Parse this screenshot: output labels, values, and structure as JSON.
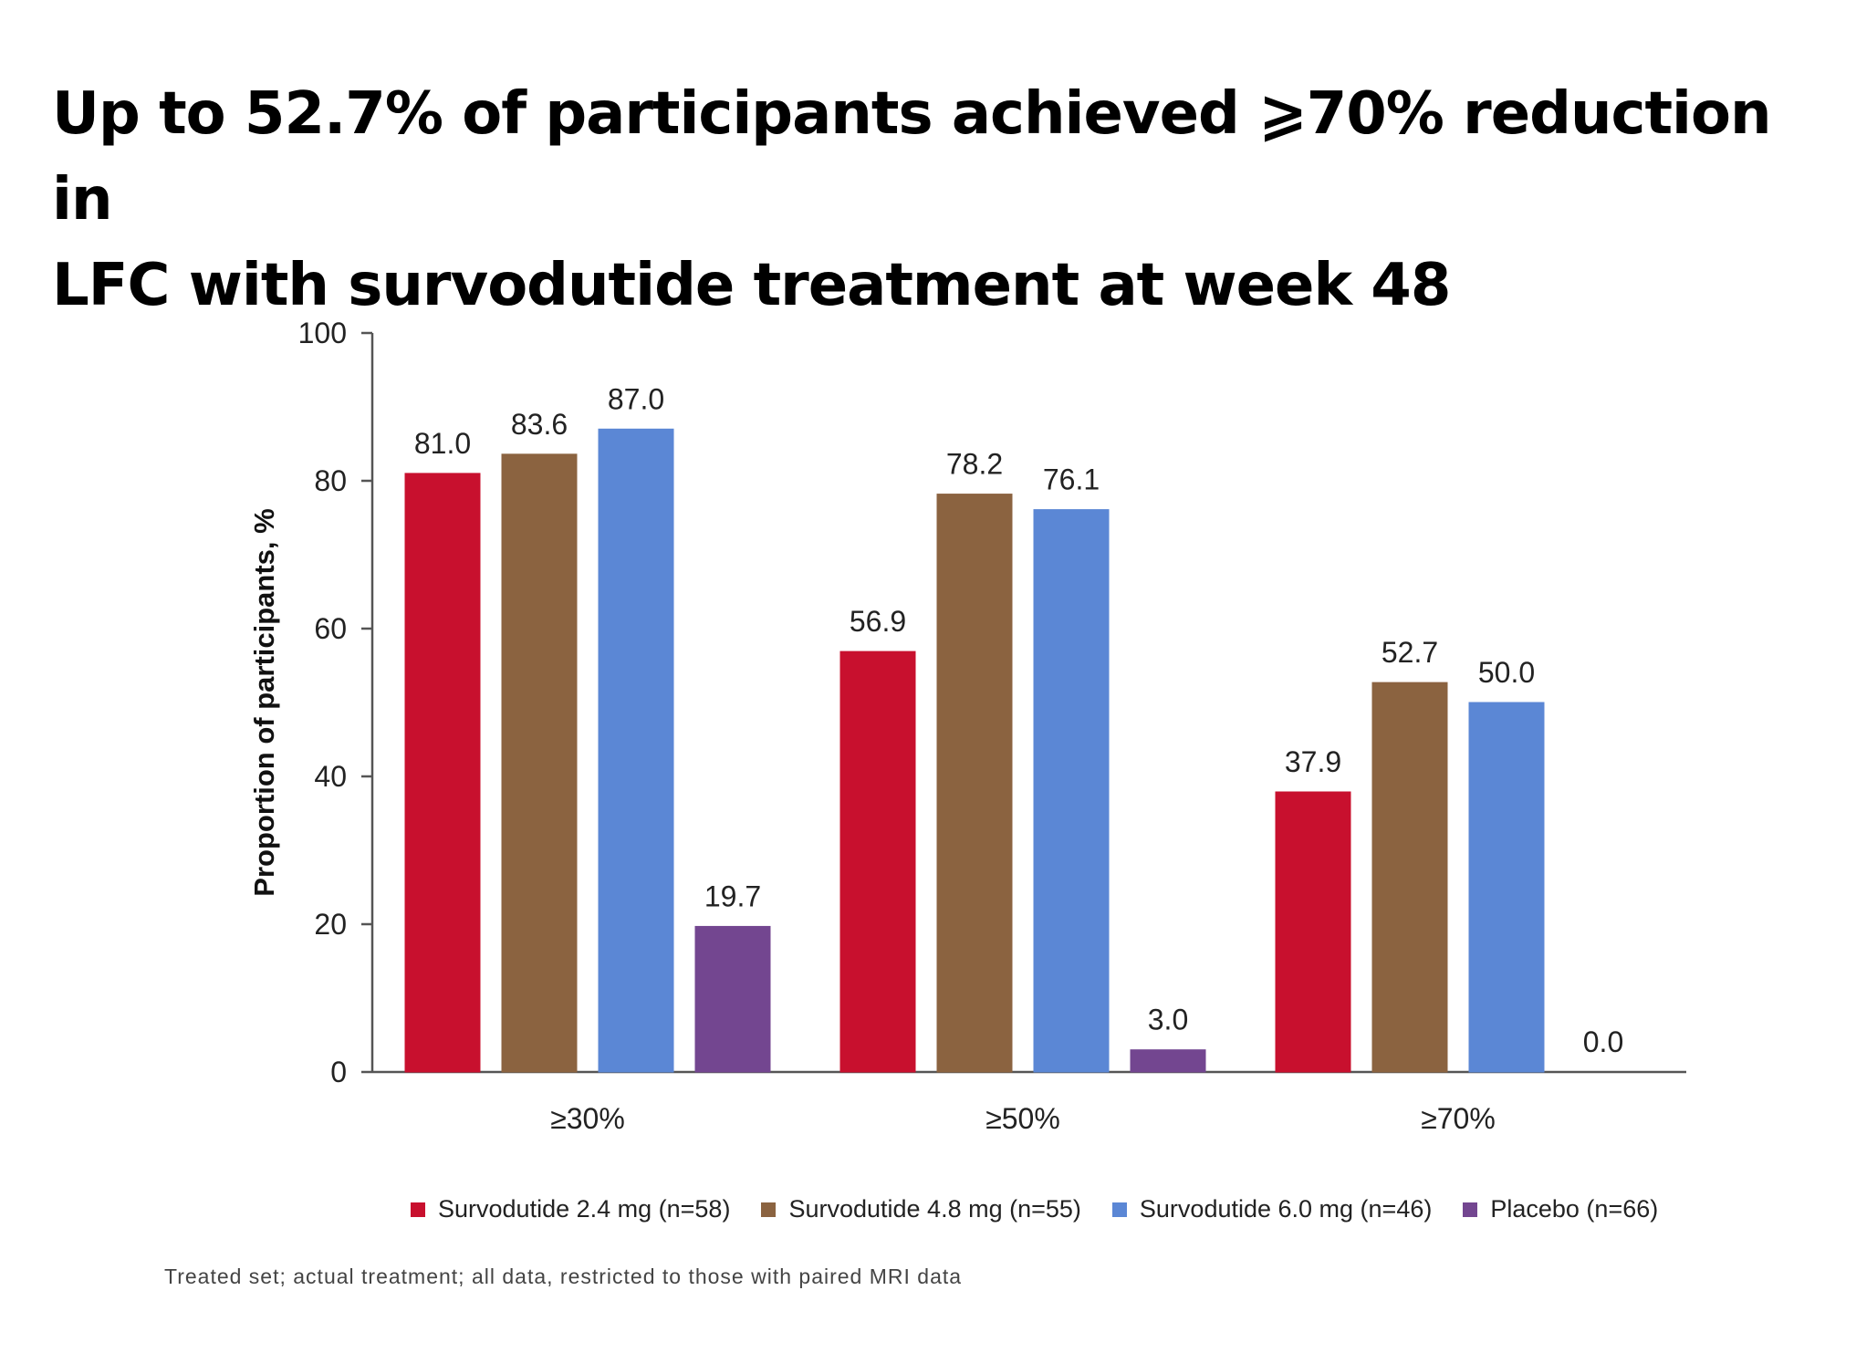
{
  "headline": {
    "line1": "Up to 52.7% of participants achieved ⩾70% reduction in",
    "line2": "LFC with survodutide treatment at week 48"
  },
  "chart_data": {
    "type": "bar",
    "categories": [
      "≥30%",
      "≥50%",
      "≥70%"
    ],
    "series": [
      {
        "name": "Survodutide 2.4 mg (n=58)",
        "color": "#c8102e",
        "values": [
          81.0,
          56.9,
          37.9
        ],
        "labels": [
          "81.0",
          "56.9",
          "37.9"
        ]
      },
      {
        "name": "Survodutide 4.8 mg (n=55)",
        "color": "#8b6340",
        "values": [
          83.6,
          78.2,
          52.7
        ],
        "labels": [
          "83.6",
          "78.2",
          "52.7"
        ]
      },
      {
        "name": "Survodutide 6.0 mg (n=46)",
        "color": "#5b87d5",
        "values": [
          87.0,
          76.1,
          50.0
        ],
        "labels": [
          "87.0",
          "76.1",
          "50.0"
        ]
      },
      {
        "name": "Placebo (n=66)",
        "color": "#734690",
        "values": [
          19.7,
          3.0,
          0.0
        ],
        "labels": [
          "19.7",
          "3.0",
          "0.0"
        ]
      }
    ],
    "ylabel": "Proportion of participants, %",
    "ylim": [
      0,
      100
    ],
    "yticks": [
      "0",
      "20",
      "40",
      "60",
      "80",
      "100"
    ],
    "legend_position": "bottom",
    "grid": false
  },
  "footnote": "Treated set; actual treatment; all data, restricted to those with paired MRI data"
}
